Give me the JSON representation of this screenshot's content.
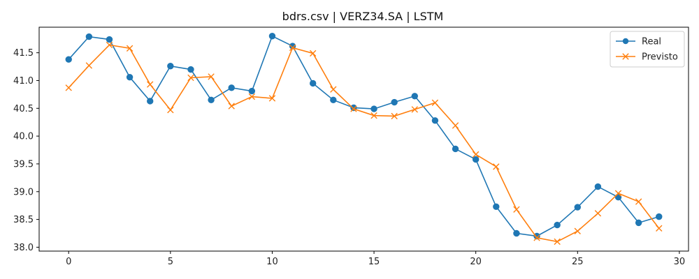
{
  "chart_data": {
    "type": "line",
    "title": "bdrs.csv | VERZ34.SA | LSTM",
    "xlabel": "",
    "ylabel": "",
    "x": [
      0,
      1,
      2,
      3,
      4,
      5,
      6,
      7,
      8,
      9,
      10,
      11,
      12,
      13,
      14,
      15,
      16,
      17,
      18,
      19,
      20,
      21,
      22,
      23,
      24,
      25,
      26,
      27,
      28,
      29
    ],
    "xlim": [
      -1.45,
      30.45
    ],
    "ylim": [
      37.93,
      41.96
    ],
    "xticks": [
      0,
      5,
      10,
      15,
      20,
      25,
      30
    ],
    "xtick_labels": [
      "0",
      "5",
      "10",
      "15",
      "20",
      "25",
      "30"
    ],
    "yticks": [
      38.0,
      38.5,
      39.0,
      39.5,
      40.0,
      40.5,
      41.0,
      41.5
    ],
    "ytick_labels": [
      "38.0",
      "38.5",
      "39.0",
      "39.5",
      "40.0",
      "40.5",
      "41.0",
      "41.5"
    ],
    "grid": false,
    "legend_position": "top-right",
    "series": [
      {
        "name": "Real",
        "color": "#1f77b4",
        "marker": "circle",
        "values": [
          41.38,
          41.79,
          41.74,
          41.06,
          40.63,
          41.26,
          41.2,
          40.65,
          40.87,
          40.81,
          41.8,
          41.62,
          40.95,
          40.65,
          40.51,
          40.49,
          40.61,
          40.72,
          40.28,
          39.77,
          39.58,
          38.73,
          38.25,
          38.2,
          38.4,
          38.72,
          39.09,
          38.9,
          38.44,
          38.55
        ]
      },
      {
        "name": "Previsto",
        "color": "#ff7f0e",
        "marker": "x",
        "values": [
          40.87,
          41.27,
          41.64,
          41.58,
          40.93,
          40.47,
          41.05,
          41.07,
          40.54,
          40.71,
          40.68,
          41.59,
          41.49,
          40.84,
          40.49,
          40.37,
          40.36,
          40.48,
          40.6,
          40.19,
          39.67,
          39.45,
          38.68,
          38.17,
          38.1,
          38.29,
          38.61,
          38.97,
          38.82,
          38.34
        ]
      }
    ]
  }
}
